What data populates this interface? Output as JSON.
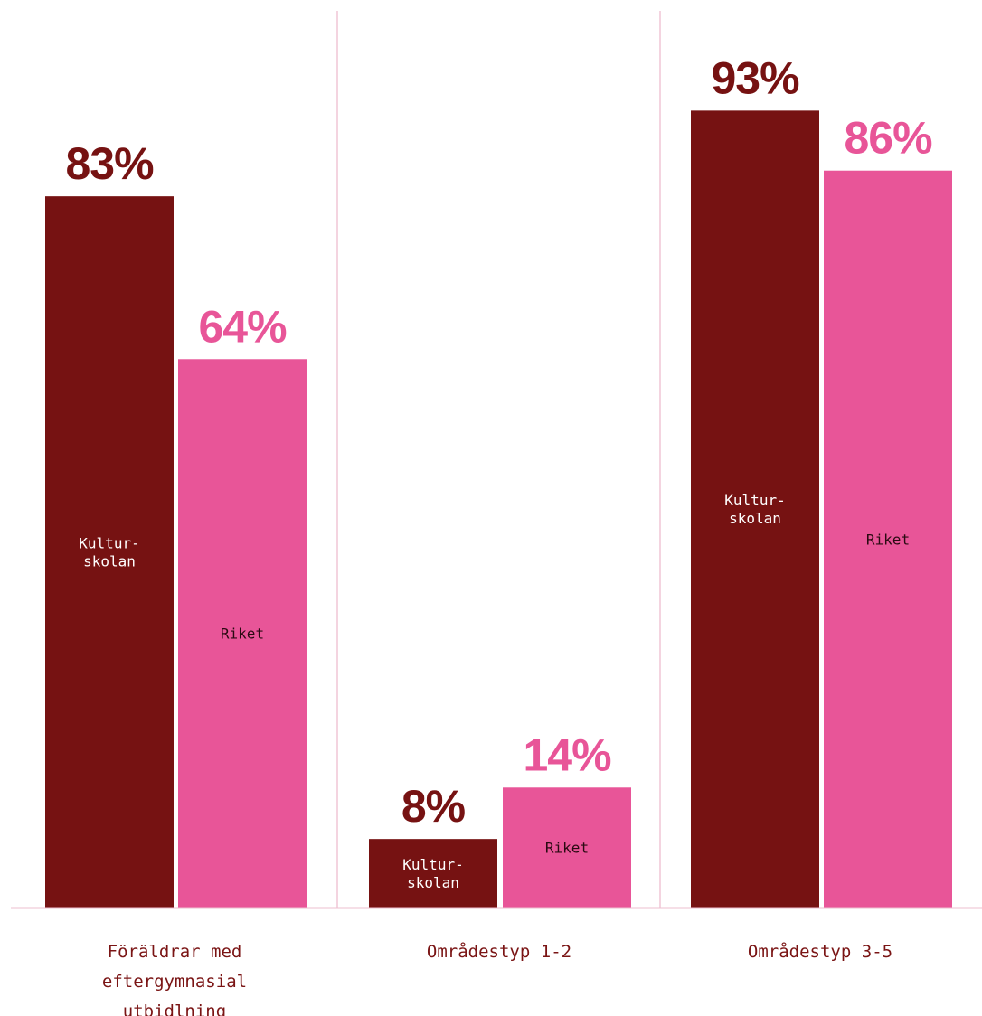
{
  "colors": {
    "kulturskolan": "#761212",
    "riket": "#e85598",
    "divider": "#f1c6d6",
    "baseline": "#ecbfcf",
    "bar_label_on_dark": "#ffffff",
    "bar_label_on_light": "#2a0a12",
    "category_text": "#7a1414"
  },
  "chart_data": {
    "type": "bar",
    "categories": [
      [
        "Föräldrar med",
        "eftergymnasial",
        "utbidlning"
      ],
      [
        "Områdestyp 1-2"
      ],
      [
        "Områdestyp 3-5"
      ]
    ],
    "series": [
      {
        "name": [
          "Kultur-",
          "skolan"
        ],
        "values": [
          83,
          8,
          93
        ],
        "value_labels": [
          "83%",
          "8%",
          "93%"
        ],
        "color": "#761212"
      },
      {
        "name": [
          "Riket"
        ],
        "values": [
          64,
          14,
          86
        ],
        "value_labels": [
          "64%",
          "14%",
          "86%"
        ],
        "color": "#e85598"
      }
    ],
    "unit": "%",
    "ylim": [
      0,
      100
    ],
    "grid": false,
    "legend": "none"
  }
}
